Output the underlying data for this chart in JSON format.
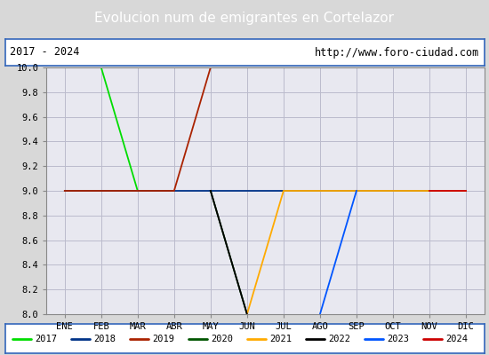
{
  "title": "Evolucion num de emigrantes en Cortelazor",
  "title_bgcolor": "#4d86d4",
  "title_fgcolor": "#ffffff",
  "subtitle_left": "2017 - 2024",
  "subtitle_right": "http://www.foro-ciudad.com",
  "xlabel_ticks": [
    "ENE",
    "FEB",
    "MAR",
    "ABR",
    "MAY",
    "JUN",
    "JUL",
    "AGO",
    "SEP",
    "OCT",
    "NOV",
    "DIC"
  ],
  "ylim": [
    8.0,
    10.0
  ],
  "yticks": [
    8.0,
    8.2,
    8.4,
    8.6,
    8.8,
    9.0,
    9.2,
    9.4,
    9.6,
    9.8,
    10.0
  ],
  "series": {
    "2017": {
      "color": "#00dd00",
      "data": [
        10,
        10,
        9,
        null,
        null,
        null,
        null,
        null,
        null,
        null,
        null,
        null
      ]
    },
    "2018": {
      "color": "#003388",
      "data": [
        9,
        9,
        9,
        9,
        9,
        9,
        9,
        9,
        9,
        9,
        9,
        9
      ]
    },
    "2019": {
      "color": "#aa2200",
      "data": [
        9,
        9,
        9,
        9,
        10,
        10,
        10,
        null,
        null,
        null,
        null,
        null
      ]
    },
    "2020": {
      "color": "#005500",
      "data": [
        null,
        null,
        null,
        null,
        9,
        8,
        null,
        null,
        null,
        null,
        null,
        null
      ]
    },
    "2021": {
      "color": "#ffaa00",
      "data": [
        null,
        null,
        null,
        null,
        null,
        8,
        9,
        9,
        9,
        9,
        9,
        9
      ]
    },
    "2022": {
      "color": "#000000",
      "data": [
        null,
        null,
        null,
        null,
        9,
        8,
        null,
        null,
        null,
        null,
        null,
        null
      ]
    },
    "2023": {
      "color": "#0055ff",
      "data": [
        null,
        null,
        null,
        null,
        null,
        null,
        null,
        8,
        9,
        null,
        null,
        null
      ]
    },
    "2024": {
      "color": "#cc0000",
      "data": [
        null,
        null,
        null,
        null,
        null,
        null,
        null,
        null,
        null,
        null,
        9,
        9
      ]
    }
  },
  "legend_order": [
    "2017",
    "2018",
    "2019",
    "2020",
    "2021",
    "2022",
    "2023",
    "2024"
  ],
  "bg_color": "#d8d8d8",
  "plot_bg_color": "#e8e8f0",
  "grid_color": "#bbbbcc",
  "border_color": "#3366bb"
}
